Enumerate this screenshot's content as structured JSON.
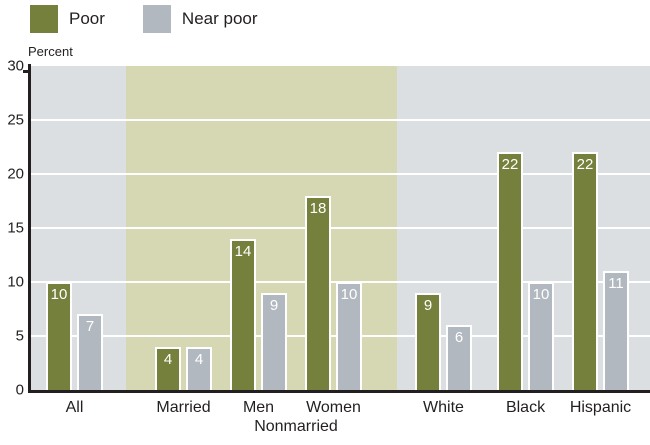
{
  "chart_data": {
    "type": "bar",
    "ylabel": "Percent",
    "ylim": [
      0,
      30
    ],
    "yticks": [
      0,
      5,
      10,
      15,
      20,
      25,
      30
    ],
    "gridline_values": [
      5,
      10,
      15,
      20,
      25
    ],
    "grid": true,
    "legend_position": "top-left",
    "categories": [
      "All",
      "Married",
      "Men",
      "Women",
      "White",
      "Black",
      "Hispanic"
    ],
    "series": [
      {
        "name": "Poor",
        "color": "#74803B",
        "values": [
          10,
          4,
          14,
          18,
          9,
          22,
          22
        ]
      },
      {
        "name": "Near poor",
        "color": "#B2B8C0",
        "values": [
          7,
          4,
          9,
          10,
          6,
          10,
          11
        ]
      }
    ],
    "group_label": "Nonmarried",
    "group_label_span": [
      "Men",
      "Women"
    ],
    "band_categories": [
      "Married",
      "Men",
      "Women"
    ],
    "colors": {
      "plot_background": "#DBDFE2",
      "band_background": "#D6D7B3",
      "gridline": "#FFFFFF",
      "axis": "#231F20",
      "value_label": "#FFFFFF",
      "text": "#231F20"
    }
  }
}
